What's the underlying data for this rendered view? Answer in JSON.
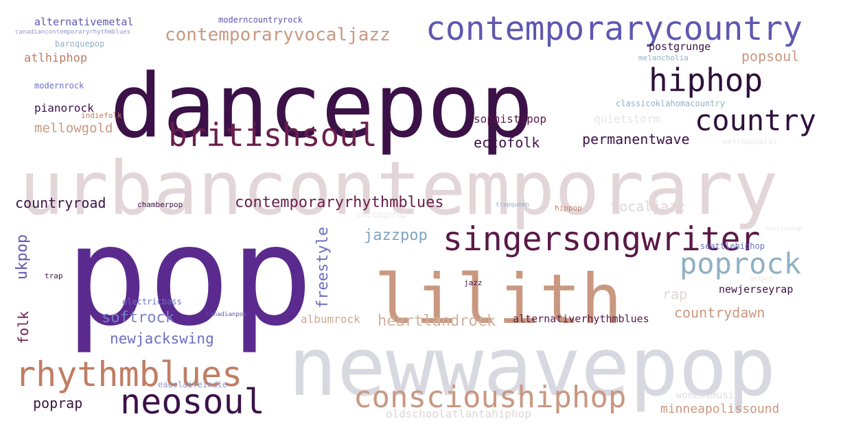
{
  "colors": {
    "background": "#ffffff",
    "dark_plum": "#3b1148",
    "maroon": "#6a1f4b",
    "deep_purple": "#5b2a8e",
    "indigo": "#5e58b0",
    "periwinkle": "#6b6fc0",
    "tan": "#c99880",
    "copper": "#c07d63",
    "steel_blue": "#7ea4c0",
    "light_mauve": "#e3d6d8",
    "light_gray": "#d8d8e0",
    "pale_gray": "#e8e4e8"
  },
  "words": [
    {
      "key": "dancepop",
      "text": "dancepop",
      "color": "#3b1148"
    },
    {
      "key": "urbancontemporary",
      "text": "urbancontemporary",
      "color": "#e3d6d8"
    },
    {
      "key": "pop",
      "text": "pop",
      "color": "#5b2a8e"
    },
    {
      "key": "newwavepop",
      "text": "newwavepop",
      "color": "#d8d8e0"
    },
    {
      "key": "lilith",
      "text": "lilith",
      "color": "#c99880"
    },
    {
      "key": "contemporarycountry",
      "text": "contemporarycountry",
      "color": "#5e58b0"
    },
    {
      "key": "singersongwriter",
      "text": "singersongwriter",
      "color": "#5a1846"
    },
    {
      "key": "britishsoul",
      "text": "britishsoul",
      "color": "#6a1f4b"
    },
    {
      "key": "rhythmblues",
      "text": "rhythmblues",
      "color": "#c07d63"
    },
    {
      "key": "neosoul",
      "text": "neosoul",
      "color": "#3b1148"
    },
    {
      "key": "conscioushiphop",
      "text": "conscioushiphop",
      "color": "#c99880"
    },
    {
      "key": "hiphop",
      "text": "hiphop",
      "color": "#2e0f3a"
    },
    {
      "key": "country",
      "text": "country",
      "color": "#2e0f3a"
    },
    {
      "key": "poprock",
      "text": "poprock",
      "color": "#8fb0c4"
    },
    {
      "key": "contemporaryvocaljazz",
      "text": "contemporaryvocaljazz",
      "color": "#c99880"
    },
    {
      "key": "contemporaryrhythmblues",
      "text": "contemporaryrhythmblues",
      "color": "#6a1f4b"
    },
    {
      "key": "countryroad",
      "text": "countryroad",
      "color": "#3b1148"
    },
    {
      "key": "ukpop",
      "text": "ukpop",
      "color": "#5e58b0"
    },
    {
      "key": "freestyle",
      "text": "freestyle",
      "color": "#6b6fc0"
    },
    {
      "key": "jazzpop",
      "text": "jazzpop",
      "color": "#7ea4c0"
    },
    {
      "key": "softrock",
      "text": "softrock",
      "color": "#7b80c8"
    },
    {
      "key": "newjackswing",
      "text": "newjackswing",
      "color": "#6b6fc0"
    },
    {
      "key": "folk",
      "text": "folk",
      "color": "#6a1f4b"
    },
    {
      "key": "poprap",
      "text": "poprap",
      "color": "#3b1148"
    },
    {
      "key": "heartlandrock",
      "text": "heartlandrock",
      "color": "#d2b0a0"
    },
    {
      "key": "countrydawn",
      "text": "countrydawn",
      "color": "#c99880"
    },
    {
      "key": "minneapolissound",
      "text": "minneapolissound",
      "color": "#c99880"
    },
    {
      "key": "womensmusic",
      "text": "womensmusic",
      "color": "#e2dbe0"
    },
    {
      "key": "oldschoolatlantahiphop",
      "text": "oldschoolatlantahiphop",
      "color": "#e0d6d6"
    },
    {
      "key": "albumrock",
      "text": "albumrock",
      "color": "#d0a890"
    },
    {
      "key": "alternativerhythmblues",
      "text": "alternativerhythmblues",
      "color": "#5a1846"
    },
    {
      "key": "newjerseyrap",
      "text": "newjerseyrap",
      "color": "#3b1148"
    },
    {
      "key": "rap",
      "text": "rap",
      "color": "#e0d6d6"
    },
    {
      "key": "vocaljazz",
      "text": "vocaljazz",
      "color": "#e0d6d6"
    },
    {
      "key": "ectofolk",
      "text": "ectofolk",
      "color": "#3b1148"
    },
    {
      "key": "permanentwave",
      "text": "permanentwave",
      "color": "#3b1148"
    },
    {
      "key": "sophistipop",
      "text": "sophistipop",
      "color": "#5a1846"
    },
    {
      "key": "quietstorm",
      "text": "quietstorm",
      "color": "#e8e4e8"
    },
    {
      "key": "mellowgold",
      "text": "mellowgold",
      "color": "#c99880"
    },
    {
      "key": "pianorock",
      "text": "pianorock",
      "color": "#3b1148"
    },
    {
      "key": "popsoul",
      "text": "popsoul",
      "color": "#c99880"
    },
    {
      "key": "postgrunge",
      "text": "postgrunge",
      "color": "#3b1148"
    },
    {
      "key": "melancholia",
      "text": "melancholia",
      "color": "#8fb0c4"
    },
    {
      "key": "classicoklahomacountry",
      "text": "classicoklahomacountry",
      "color": "#8fb0c4"
    },
    {
      "key": "metropopolis",
      "text": "metropopolis",
      "color": "#ece8ec"
    },
    {
      "key": "atlhiphop",
      "text": "atlhiphop",
      "color": "#c07d63"
    },
    {
      "key": "alternativemetal",
      "text": "alternativemetal",
      "color": "#5e58b0"
    },
    {
      "key": "canadiancontemporaryrhythmblues",
      "text": "canadiancontemporaryrhythmblues",
      "color": "#8f95cc"
    },
    {
      "key": "baroquepop",
      "text": "baroquepop",
      "color": "#8fb0c4"
    },
    {
      "key": "modernrock",
      "text": "modernrock",
      "color": "#6b6fc0"
    },
    {
      "key": "indiefolk",
      "text": "indiefolk",
      "color": "#c07d63"
    },
    {
      "key": "moderncountryrock",
      "text": "moderncountryrock",
      "color": "#5e58b0"
    },
    {
      "key": "chamberpop",
      "text": "chamberpop",
      "color": "#3b1148"
    },
    {
      "key": "chicagorap",
      "text": "chicagorap",
      "color": "#ece8ec"
    },
    {
      "key": "trapqueen",
      "text": "trapqueen",
      "color": "#8fb0c4"
    },
    {
      "key": "hippop",
      "text": "hippop",
      "color": "#c07d63"
    },
    {
      "key": "houstonrap",
      "text": "houstonrap",
      "color": "#ece8ec"
    },
    {
      "key": "seattlehiphop",
      "text": "seattlehiphop",
      "color": "#6b6fc0"
    },
    {
      "key": "artpop",
      "text": "artpop",
      "color": "#ece8ec"
    },
    {
      "key": "jazz",
      "text": "jazz",
      "color": "#3b1148"
    },
    {
      "key": "trap",
      "text": "trap",
      "color": "#3b1148"
    },
    {
      "key": "electricbass",
      "text": "electricbass",
      "color": "#6b6fc0"
    },
    {
      "key": "canadianpop",
      "text": "canadianpop",
      "color": "#5e58b0"
    },
    {
      "key": "eauclaireindie",
      "text": "eauclaireindie",
      "color": "#8f95cc"
    }
  ]
}
